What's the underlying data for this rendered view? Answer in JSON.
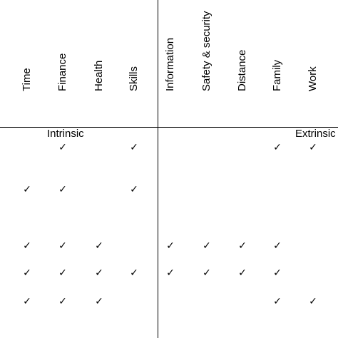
{
  "columns": [
    {
      "label": "Time"
    },
    {
      "label": "Finance"
    },
    {
      "label": "Health"
    },
    {
      "label": "Skills"
    },
    {
      "label": "Information"
    },
    {
      "label": "Safety & security"
    },
    {
      "label": "Distance"
    },
    {
      "label": "Family"
    },
    {
      "label": "Work"
    }
  ],
  "groups": {
    "intrinsic": "Intrinsic",
    "extrinsic": "Extrinsic"
  },
  "check_symbol": "✓",
  "rows": [
    [
      false,
      true,
      false,
      true,
      false,
      false,
      false,
      true,
      true
    ],
    [
      true,
      true,
      false,
      true,
      false,
      false,
      false,
      false,
      false
    ],
    [
      true,
      true,
      true,
      false,
      true,
      true,
      true,
      true,
      false
    ],
    [
      true,
      true,
      true,
      true,
      true,
      true,
      true,
      true,
      false
    ],
    [
      true,
      true,
      true,
      false,
      false,
      false,
      false,
      true,
      true
    ]
  ]
}
